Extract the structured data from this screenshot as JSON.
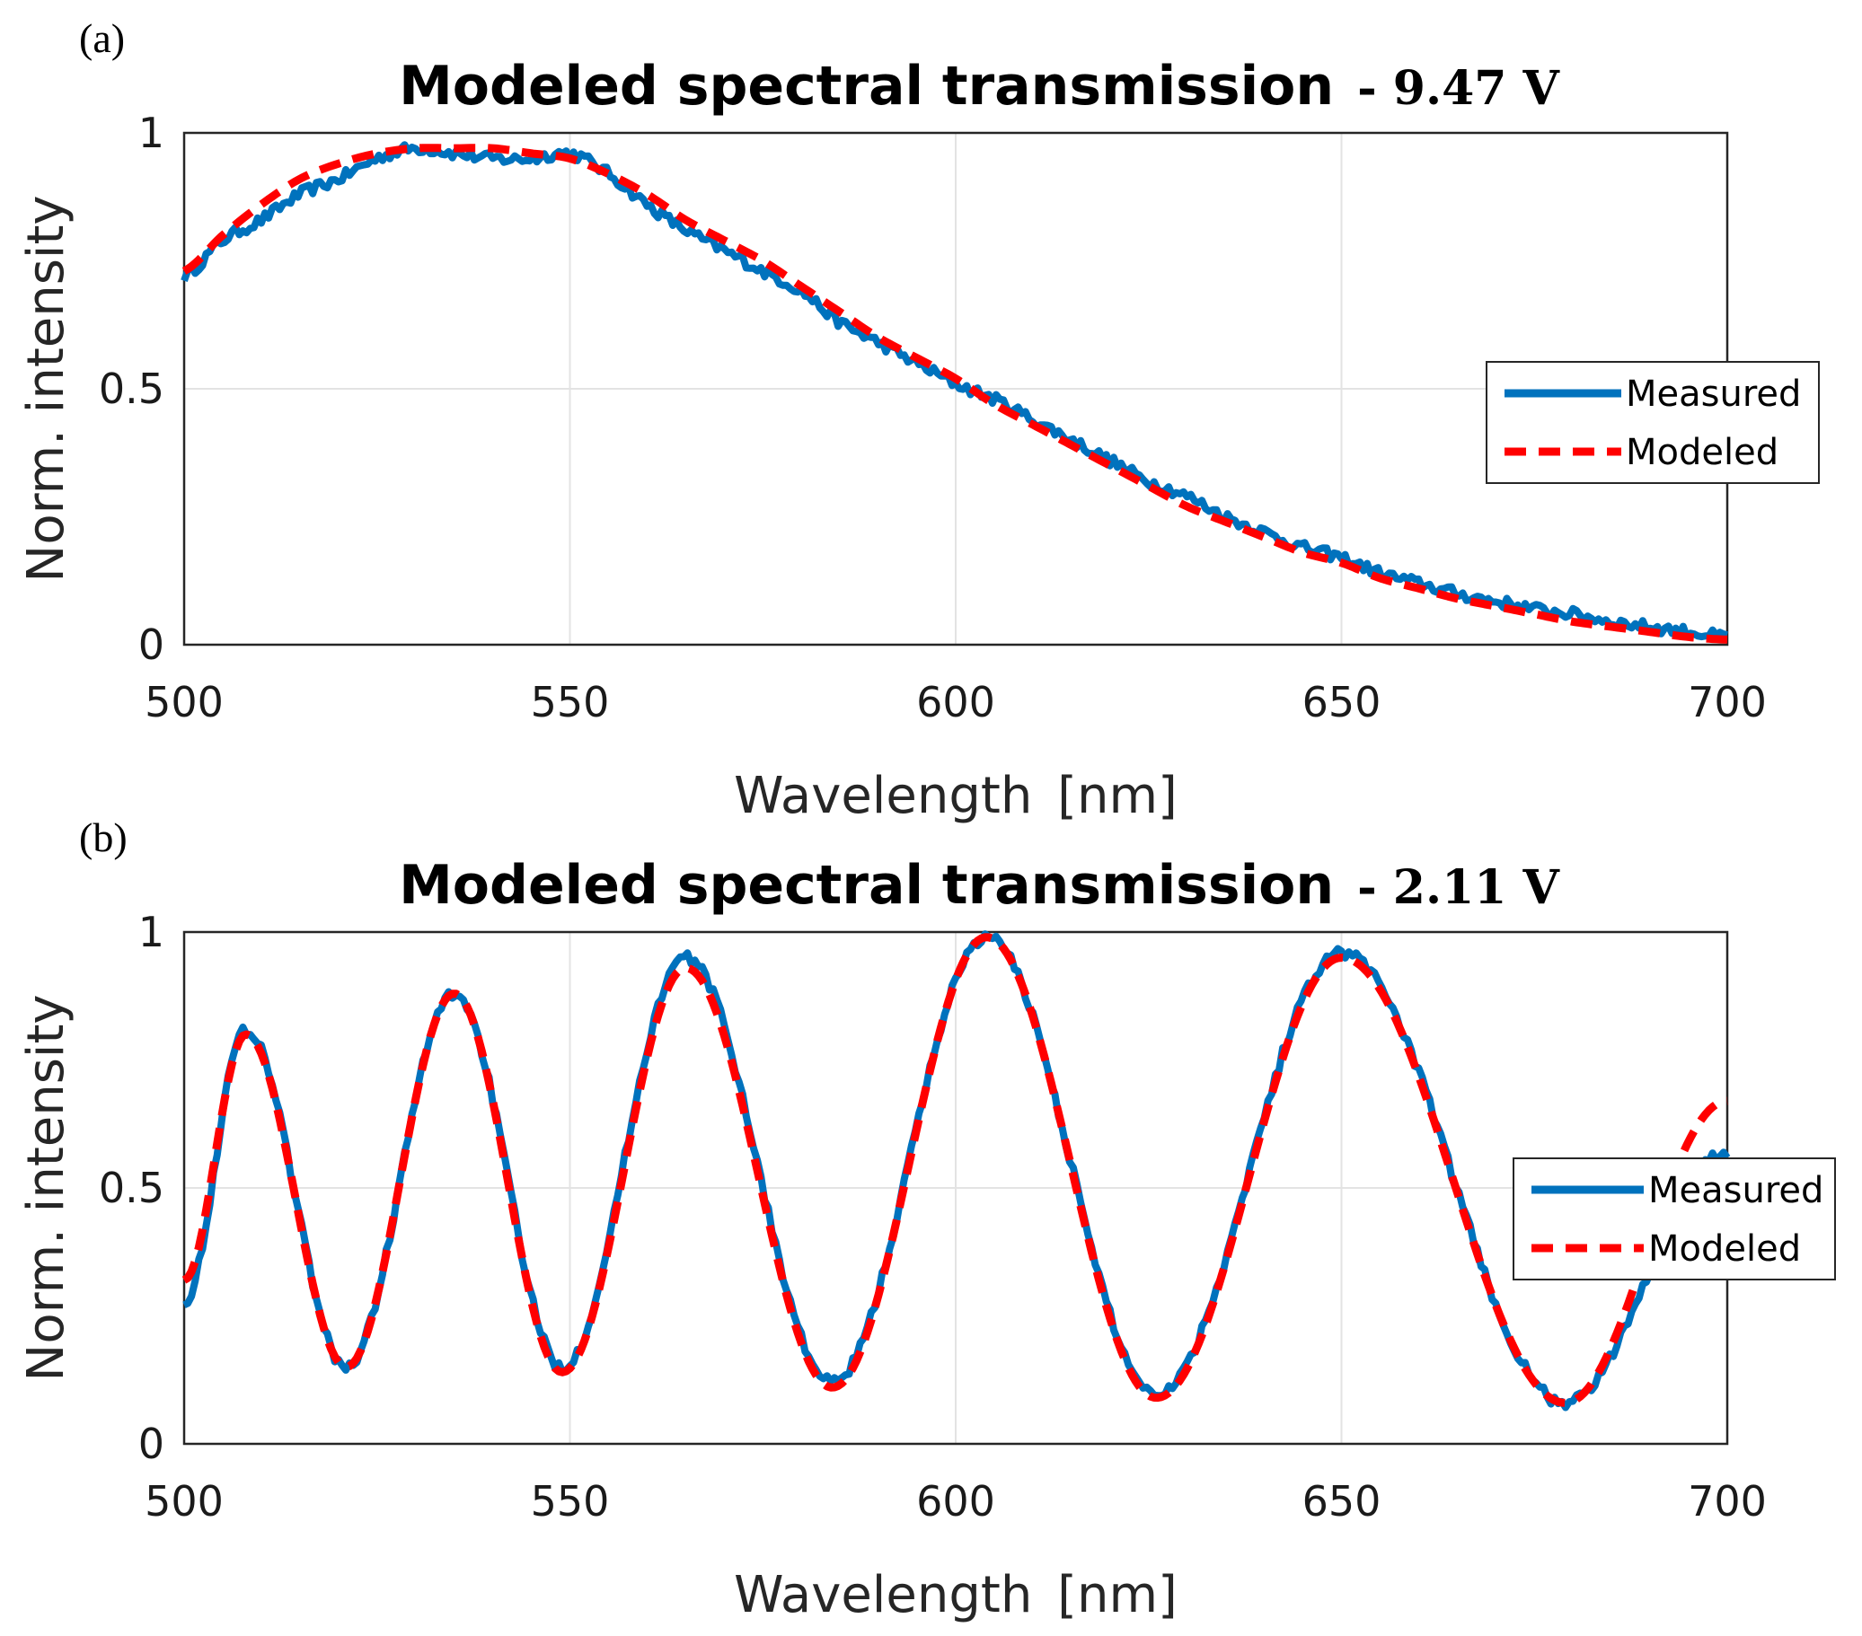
{
  "chart_data": [
    {
      "type": "line",
      "panel_label": "(a)",
      "title": "Modeled spectral transmission",
      "title_suffix": "- 9.47 V",
      "xlabel": "Wavelength",
      "xlabel_unit": "[nm]",
      "ylabel": "Norm. intensity",
      "xlim": [
        500,
        700
      ],
      "ylim": [
        0,
        1
      ],
      "xticks": [
        "500",
        "550",
        "600",
        "650",
        "700"
      ],
      "yticks": [
        "0",
        "0.5",
        "1"
      ],
      "grid": true,
      "legend_position": "right-middle",
      "series": [
        {
          "name": "Measured",
          "color": "#0072BD",
          "style": "solid",
          "x": [
            500,
            505,
            510,
            515,
            520,
            525,
            530,
            535,
            540,
            545,
            550,
            555,
            560,
            565,
            570,
            575,
            580,
            585,
            590,
            595,
            600,
            605,
            610,
            615,
            620,
            625,
            630,
            635,
            640,
            645,
            650,
            655,
            660,
            665,
            670,
            675,
            680,
            685,
            690,
            695,
            700
          ],
          "y": [
            0.72,
            0.79,
            0.83,
            0.88,
            0.91,
            0.95,
            0.97,
            0.96,
            0.95,
            0.95,
            0.96,
            0.92,
            0.86,
            0.81,
            0.77,
            0.73,
            0.69,
            0.63,
            0.59,
            0.55,
            0.51,
            0.48,
            0.44,
            0.4,
            0.36,
            0.32,
            0.29,
            0.25,
            0.22,
            0.19,
            0.17,
            0.14,
            0.12,
            0.1,
            0.085,
            0.07,
            0.06,
            0.045,
            0.035,
            0.025,
            0.015
          ]
        },
        {
          "name": "Modeled",
          "color": "#FF0000",
          "style": "dashed",
          "x": [
            500,
            505,
            510,
            515,
            520,
            525,
            530,
            535,
            540,
            545,
            550,
            555,
            560,
            565,
            570,
            575,
            580,
            585,
            590,
            595,
            600,
            605,
            610,
            615,
            620,
            625,
            630,
            635,
            640,
            645,
            650,
            655,
            660,
            665,
            670,
            675,
            680,
            685,
            690,
            695,
            700
          ],
          "y": [
            0.73,
            0.8,
            0.86,
            0.91,
            0.94,
            0.96,
            0.97,
            0.97,
            0.97,
            0.96,
            0.95,
            0.92,
            0.88,
            0.83,
            0.79,
            0.75,
            0.7,
            0.65,
            0.6,
            0.56,
            0.52,
            0.47,
            0.43,
            0.39,
            0.35,
            0.31,
            0.27,
            0.24,
            0.21,
            0.18,
            0.16,
            0.13,
            0.11,
            0.09,
            0.075,
            0.06,
            0.045,
            0.035,
            0.025,
            0.015,
            0.01
          ]
        }
      ]
    },
    {
      "type": "line",
      "panel_label": "(b)",
      "title": "Modeled spectral transmission",
      "title_suffix": "- 2.11 V",
      "xlabel": "Wavelength",
      "xlabel_unit": "[nm]",
      "ylabel": "Norm. intensity",
      "xlim": [
        500,
        700
      ],
      "ylim": [
        0,
        1
      ],
      "xticks": [
        "500",
        "550",
        "600",
        "650",
        "700"
      ],
      "yticks": [
        "0",
        "0.5",
        "1"
      ],
      "grid": true,
      "legend_position": "right-middle",
      "series": [
        {
          "name": "Measured",
          "color": "#0072BD",
          "style": "solid",
          "x": [
            500,
            508,
            521,
            535,
            549,
            565,
            584,
            604,
            626,
            650,
            679,
            700
          ],
          "y": [
            0.28,
            0.81,
            0.15,
            0.88,
            0.15,
            0.95,
            0.12,
            0.99,
            0.1,
            0.96,
            0.08,
            0.57
          ]
        },
        {
          "name": "Modeled",
          "color": "#FF0000",
          "style": "dashed",
          "x": [
            500,
            508,
            521,
            535,
            549,
            565,
            584,
            604,
            626,
            650,
            679,
            700
          ],
          "y": [
            0.32,
            0.8,
            0.15,
            0.88,
            0.14,
            0.93,
            0.11,
            0.99,
            0.09,
            0.95,
            0.08,
            0.67
          ]
        }
      ]
    }
  ]
}
